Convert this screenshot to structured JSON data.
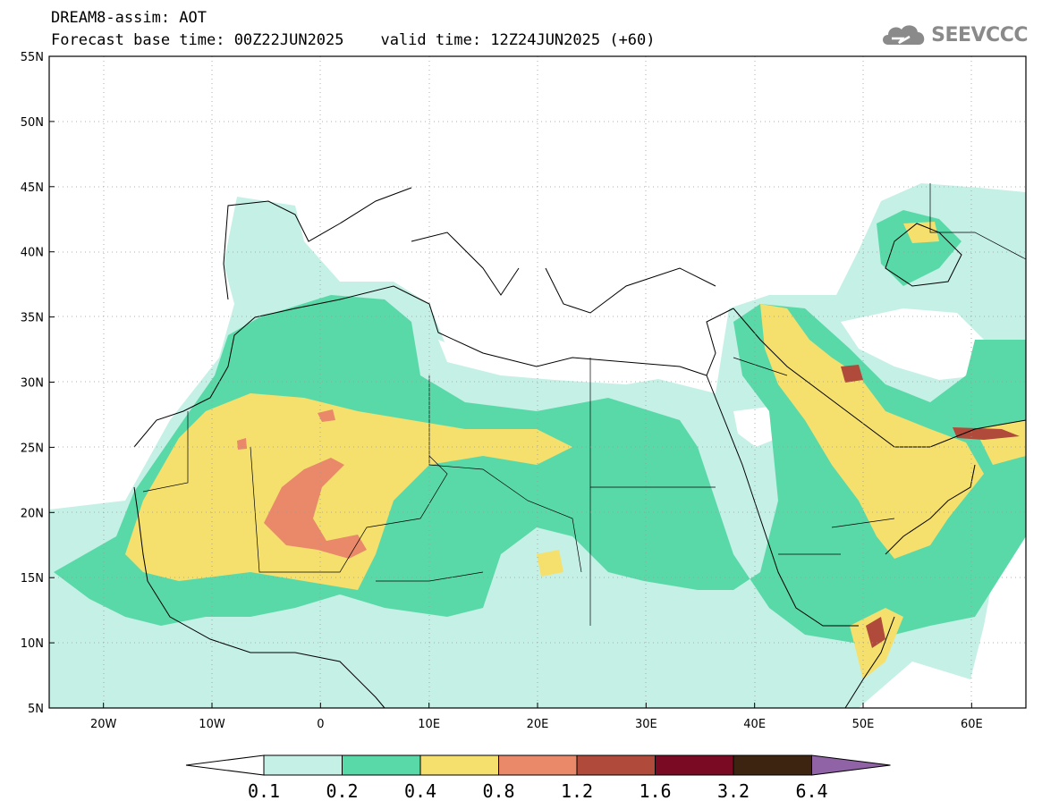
{
  "header": {
    "title": "DREAM8-assim: AOT",
    "base_time": "Forecast base time: 00Z22JUN2025",
    "valid_time": "valid time: 12Z24JUN2025 (+60)"
  },
  "brand": {
    "name": "SEEVCCC",
    "icon": "cloud-icon",
    "color": "#8a8a8a"
  },
  "map": {
    "lat_labels": [
      "55N",
      "50N",
      "45N",
      "40N",
      "35N",
      "30N",
      "25N",
      "20N",
      "15N",
      "10N",
      "5N"
    ],
    "lon_labels": [
      "20W",
      "10W",
      "0",
      "10E",
      "20E",
      "30E",
      "40E",
      "50E",
      "60E"
    ],
    "lon_range": [
      -25,
      65
    ],
    "lat_range": [
      5,
      55
    ]
  },
  "colorbar": {
    "labels": [
      "0.1",
      "0.2",
      "0.4",
      "0.8",
      "1.2",
      "1.6",
      "3.2",
      "6.4"
    ],
    "colors": [
      "#ffffff",
      "#c5f0e6",
      "#5ad9a8",
      "#f5e06e",
      "#e9896a",
      "#b04a3a",
      "#7a0a24",
      "#3d2410",
      "#8f63a6"
    ]
  },
  "palette": {
    "white": "#ffffff",
    "c1": "#c5f0e6",
    "c2": "#5ad9a8",
    "c3": "#f5e06e",
    "c4": "#e9896a",
    "c5": "#b04a3a"
  }
}
